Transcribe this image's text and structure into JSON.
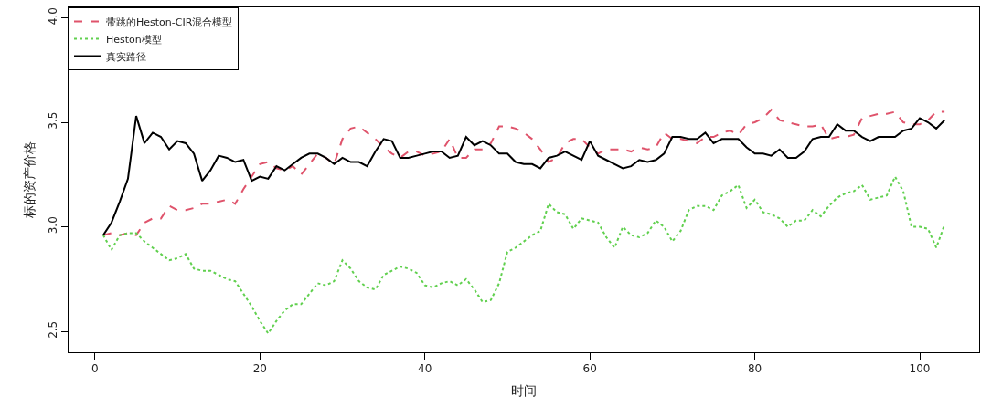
{
  "chart_data": {
    "type": "line",
    "xlabel": "时间",
    "ylabel": "标的资产价格",
    "xlim": [
      -3.2,
      107.2
    ],
    "ylim": [
      2.4,
      4.05
    ],
    "xticks": [
      0,
      20,
      40,
      60,
      80,
      100
    ],
    "yticks": [
      {
        "value": 2.5,
        "label": "2.5"
      },
      {
        "value": 3,
        "label": "3.0"
      },
      {
        "value": 3.5,
        "label": "3.5"
      },
      {
        "value": 4,
        "label": "4.0"
      }
    ],
    "grid": false,
    "legend": "top left",
    "marker": "none",
    "x": [
      1,
      2,
      3,
      4,
      5,
      6,
      7,
      8,
      9,
      10,
      11,
      12,
      13,
      14,
      15,
      16,
      17,
      18,
      19,
      20,
      21,
      22,
      23,
      24,
      25,
      26,
      27,
      28,
      29,
      30,
      31,
      32,
      33,
      34,
      35,
      36,
      37,
      38,
      39,
      40,
      41,
      42,
      43,
      44,
      45,
      46,
      47,
      48,
      49,
      50,
      51,
      52,
      53,
      54,
      55,
      56,
      57,
      58,
      59,
      60,
      61,
      62,
      63,
      64,
      65,
      66,
      67,
      68,
      69,
      70,
      71,
      72,
      73,
      74,
      75,
      76,
      77,
      78,
      79,
      80,
      81,
      82,
      83,
      84,
      85,
      86,
      87,
      88,
      89,
      90,
      91,
      92,
      93,
      94,
      95,
      96,
      97,
      98,
      99,
      100,
      101,
      102,
      103
    ],
    "series": [
      {
        "name": "带跳的Heston-CIR混合模型",
        "color": "#df536b",
        "line_style": "dashed",
        "values": [
          2.96,
          2.97,
          2.96,
          2.97,
          2.96,
          3.02,
          3.04,
          3.04,
          3.1,
          3.08,
          3.08,
          3.09,
          3.11,
          3.11,
          3.12,
          3.13,
          3.11,
          3.18,
          3.24,
          3.3,
          3.31,
          3.28,
          3.27,
          3.29,
          3.25,
          3.3,
          3.35,
          3.33,
          3.3,
          3.42,
          3.47,
          3.48,
          3.45,
          3.42,
          3.38,
          3.35,
          3.33,
          3.36,
          3.36,
          3.34,
          3.35,
          3.36,
          3.42,
          3.33,
          3.33,
          3.37,
          3.37,
          3.4,
          3.48,
          3.48,
          3.47,
          3.45,
          3.42,
          3.37,
          3.31,
          3.33,
          3.4,
          3.42,
          3.42,
          3.38,
          3.35,
          3.37,
          3.37,
          3.37,
          3.36,
          3.38,
          3.37,
          3.38,
          3.45,
          3.42,
          3.42,
          3.41,
          3.4,
          3.43,
          3.43,
          3.45,
          3.46,
          3.44,
          3.49,
          3.5,
          3.52,
          3.56,
          3.51,
          3.5,
          3.49,
          3.48,
          3.48,
          3.49,
          3.42,
          3.43,
          3.43,
          3.44,
          3.52,
          3.53,
          3.54,
          3.54,
          3.55,
          3.5,
          3.49,
          3.49,
          3.51,
          3.55,
          3.55
        ]
      },
      {
        "name": "Heston模型",
        "color": "#61d04f",
        "line_style": "dotted",
        "values": [
          2.96,
          2.89,
          2.96,
          2.97,
          2.97,
          2.93,
          2.9,
          2.87,
          2.84,
          2.85,
          2.87,
          2.8,
          2.79,
          2.79,
          2.77,
          2.75,
          2.74,
          2.68,
          2.62,
          2.55,
          2.49,
          2.55,
          2.6,
          2.63,
          2.63,
          2.68,
          2.73,
          2.72,
          2.74,
          2.84,
          2.8,
          2.74,
          2.71,
          2.7,
          2.77,
          2.79,
          2.81,
          2.8,
          2.78,
          2.72,
          2.71,
          2.73,
          2.74,
          2.72,
          2.75,
          2.7,
          2.64,
          2.65,
          2.73,
          2.88,
          2.9,
          2.93,
          2.96,
          2.98,
          3.11,
          3.07,
          3.06,
          2.99,
          3.04,
          3.03,
          3.02,
          2.95,
          2.9,
          3.0,
          2.96,
          2.95,
          2.97,
          3.03,
          3.0,
          2.93,
          2.98,
          3.08,
          3.1,
          3.1,
          3.08,
          3.15,
          3.17,
          3.2,
          3.09,
          3.13,
          3.07,
          3.06,
          3.04,
          3.0,
          3.03,
          3.03,
          3.08,
          3.05,
          3.1,
          3.14,
          3.16,
          3.17,
          3.2,
          3.13,
          3.14,
          3.15,
          3.24,
          3.17,
          3.0,
          3.0,
          2.99,
          2.9,
          3.01
        ]
      },
      {
        "name": "真实路径",
        "color": "#000000",
        "line_style": "solid",
        "values": [
          2.96,
          3.02,
          3.12,
          3.23,
          3.53,
          3.4,
          3.45,
          3.43,
          3.37,
          3.41,
          3.4,
          3.35,
          3.22,
          3.27,
          3.34,
          3.33,
          3.31,
          3.32,
          3.22,
          3.24,
          3.23,
          3.29,
          3.27,
          3.3,
          3.33,
          3.35,
          3.35,
          3.33,
          3.3,
          3.33,
          3.31,
          3.31,
          3.29,
          3.36,
          3.42,
          3.41,
          3.33,
          3.33,
          3.34,
          3.35,
          3.36,
          3.36,
          3.33,
          3.34,
          3.43,
          3.39,
          3.41,
          3.39,
          3.35,
          3.35,
          3.31,
          3.3,
          3.3,
          3.28,
          3.33,
          3.34,
          3.36,
          3.34,
          3.32,
          3.41,
          3.34,
          3.32,
          3.3,
          3.28,
          3.29,
          3.32,
          3.31,
          3.32,
          3.35,
          3.43,
          3.43,
          3.42,
          3.42,
          3.45,
          3.4,
          3.42,
          3.42,
          3.42,
          3.38,
          3.35,
          3.35,
          3.34,
          3.37,
          3.33,
          3.33,
          3.36,
          3.42,
          3.43,
          3.43,
          3.49,
          3.46,
          3.46,
          3.43,
          3.41,
          3.43,
          3.43,
          3.43,
          3.46,
          3.47,
          3.52,
          3.5,
          3.47,
          3.51
        ]
      }
    ]
  }
}
